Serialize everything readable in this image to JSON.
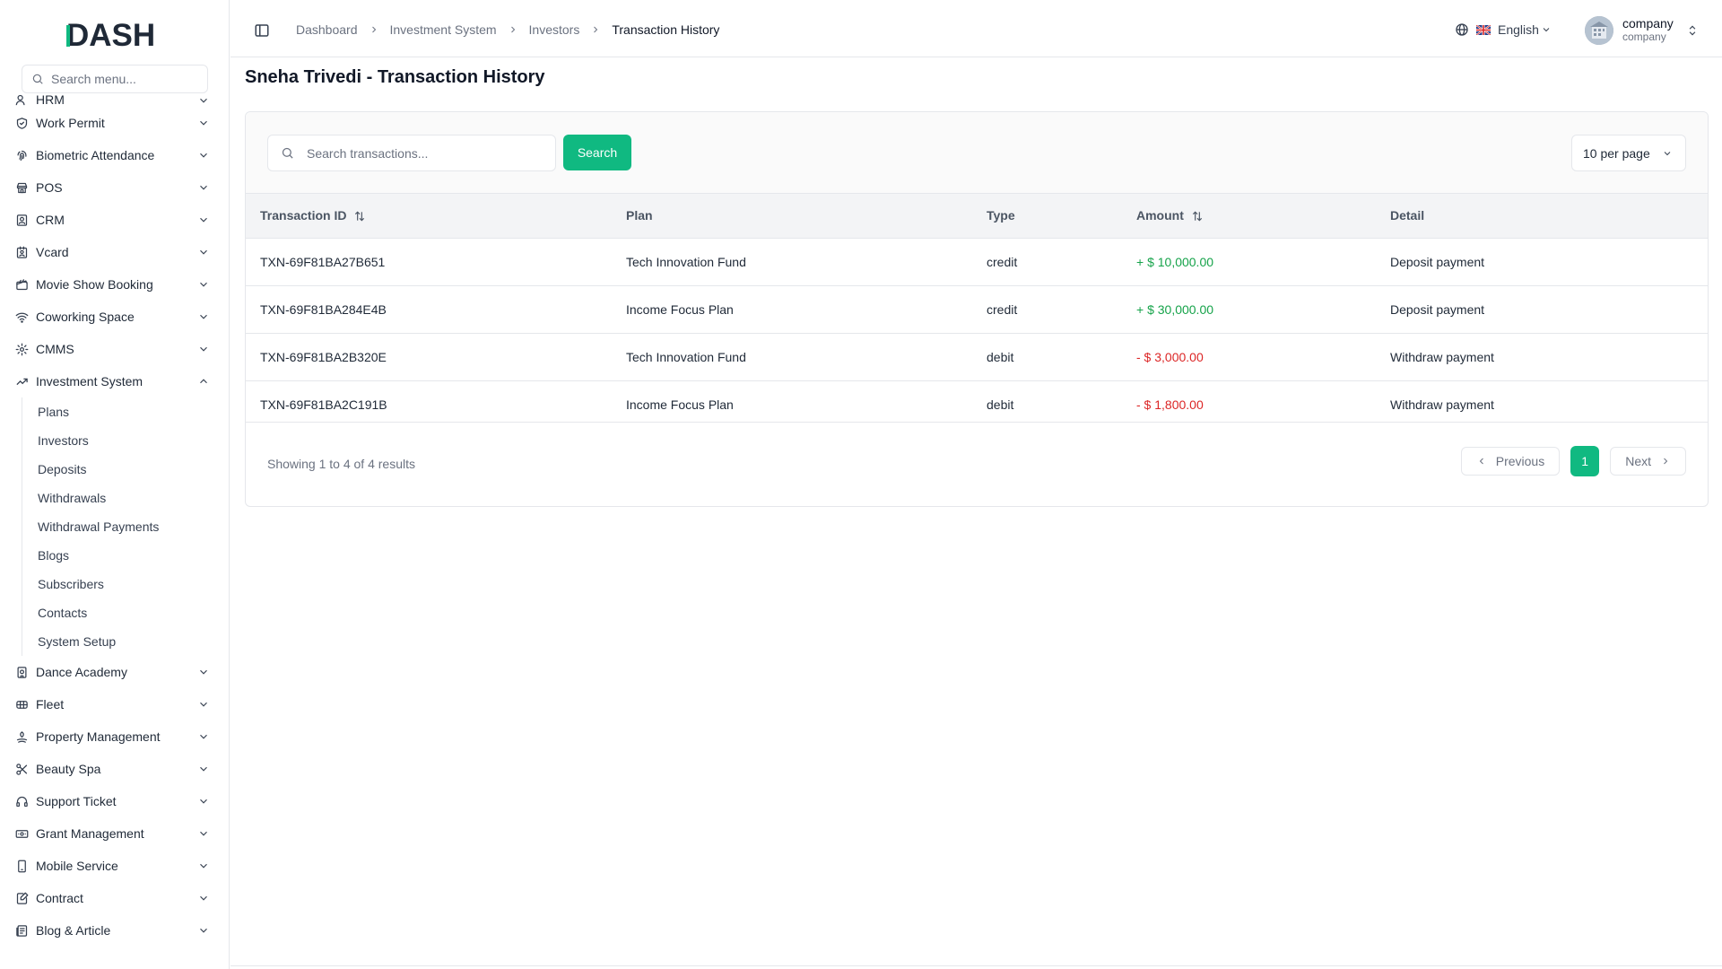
{
  "brand": {
    "logo_text": "DASH",
    "accent": "#10b981"
  },
  "sidebar": {
    "search_placeholder": "Search menu...",
    "partial_item": "HRM",
    "items_before": [
      {
        "label": "Work Permit",
        "icon": "shield-check-icon"
      },
      {
        "label": "Biometric Attendance",
        "icon": "fingerprint-icon"
      },
      {
        "label": "POS",
        "icon": "store-icon"
      },
      {
        "label": "CRM",
        "icon": "contact-card-icon"
      },
      {
        "label": "Vcard",
        "icon": "id-card-icon"
      },
      {
        "label": "Movie Show Booking",
        "icon": "ticket-icon"
      },
      {
        "label": "Coworking Space",
        "icon": "wifi-icon"
      },
      {
        "label": "CMMS",
        "icon": "cog-icon"
      }
    ],
    "active_group": {
      "label": "Investment System",
      "icon": "trending-up-icon"
    },
    "sub_items": [
      "Plans",
      "Investors",
      "Deposits",
      "Withdrawals",
      "Withdrawal Payments",
      "Blogs",
      "Subscribers",
      "Contacts",
      "System Setup"
    ],
    "items_after": [
      {
        "label": "Dance Academy",
        "icon": "building-icon"
      },
      {
        "label": "Fleet",
        "icon": "car-icon"
      },
      {
        "label": "Property Management",
        "icon": "key-icon"
      },
      {
        "label": "Beauty Spa",
        "icon": "scissors-icon"
      },
      {
        "label": "Support Ticket",
        "icon": "headset-icon"
      },
      {
        "label": "Grant Management",
        "icon": "banknote-icon"
      },
      {
        "label": "Mobile Service",
        "icon": "smartphone-icon"
      },
      {
        "label": "Contract",
        "icon": "file-signature-icon"
      },
      {
        "label": "Blog & Article",
        "icon": "newspaper-icon"
      }
    ]
  },
  "header": {
    "breadcrumb": [
      "Dashboard",
      "Investment System",
      "Investors"
    ],
    "breadcrumb_current": "Transaction History",
    "language": "English",
    "user_name": "company",
    "user_role": "company"
  },
  "main": {
    "title": "Sneha Trivedi - Transaction History",
    "search_placeholder": "Search transactions...",
    "search_button": "Search",
    "per_page": "10 per page",
    "columns": [
      "Transaction ID",
      "Plan",
      "Type",
      "Amount",
      "Detail"
    ],
    "rows": [
      {
        "id": "TXN-69F81BA27B651",
        "plan": "Tech Innovation Fund",
        "type": "credit",
        "amount": "+ $ 10,000.00",
        "sign": "pos",
        "detail": "Deposit payment"
      },
      {
        "id": "TXN-69F81BA284E4B",
        "plan": "Income Focus Plan",
        "type": "credit",
        "amount": "+ $ 30,000.00",
        "sign": "pos",
        "detail": "Deposit payment"
      },
      {
        "id": "TXN-69F81BA2B320E",
        "plan": "Tech Innovation Fund",
        "type": "debit",
        "amount": "- $ 3,000.00",
        "sign": "neg",
        "detail": "Withdraw payment"
      },
      {
        "id": "TXN-69F81BA2C191B",
        "plan": "Income Focus Plan",
        "type": "debit",
        "amount": "- $ 1,800.00",
        "sign": "neg",
        "detail": "Withdraw payment"
      }
    ],
    "showing": "Showing 1 to 4 of 4 results",
    "pager": {
      "prev": "Previous",
      "current": "1",
      "next": "Next"
    }
  }
}
